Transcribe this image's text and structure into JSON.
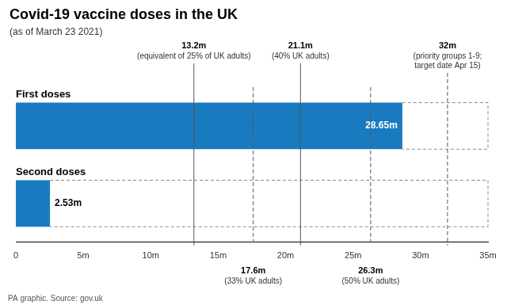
{
  "chart_data": {
    "type": "bar",
    "orientation": "horizontal",
    "title": "Covid-19 vaccine doses in the UK",
    "subtitle": "(as of March 23 2021)",
    "source": "PA graphic. Source: gov.uk",
    "categories": [
      "First doses",
      "Second doses"
    ],
    "values": [
      28.65,
      2.53
    ],
    "value_labels": [
      "28.65m",
      "2.53m"
    ],
    "data_labels": true,
    "color": "#1a7abf",
    "xlim": [
      0,
      35
    ],
    "xticks": [
      0,
      {
        "value": 5,
        "label": "5m"
      },
      {
        "value": 10,
        "label": "10m"
      },
      {
        "value": 15,
        "label": "15m"
      },
      {
        "value": 20,
        "label": "20m"
      },
      {
        "value": 25,
        "label": "25m"
      },
      {
        "value": 30,
        "label": "30m"
      },
      {
        "value": 35,
        "label": "35m"
      }
    ],
    "grid": false,
    "tick_labels": "x",
    "annotations": [
      {
        "x": 13.2,
        "label": "13.2m",
        "sub_label": "(equivalent of 25% of UK adults)",
        "line_style": "solid"
      },
      {
        "x": 17.6,
        "label": "17.6m",
        "sub_label": "(33% UK adults)",
        "line_style": "dashed"
      },
      {
        "x": 21.1,
        "label": "21.1m",
        "sub_label": "(40% UK adults)",
        "line_style": "solid"
      },
      {
        "x": 26.3,
        "label": "26.3m",
        "sub_label": "(50% UK adults)",
        "line_style": "dashed"
      },
      {
        "x": 32.0,
        "label": "32m",
        "sub_label": "(priority groups 1-9;\ntarget date Apr 15)",
        "line_style": "dashed"
      }
    ]
  }
}
